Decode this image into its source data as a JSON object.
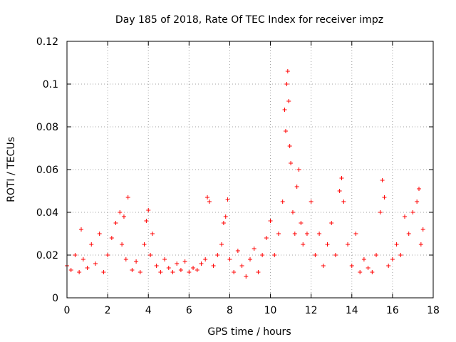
{
  "chart_data": {
    "type": "scatter",
    "title": "Day 185 of 2018, Rate Of TEC Index for receiver impz",
    "xlabel": "GPS time / hours",
    "ylabel": "ROTI / TECUs",
    "xlim": [
      0,
      18
    ],
    "ylim": [
      0,
      0.12
    ],
    "x_ticks": [
      0,
      2,
      4,
      6,
      8,
      10,
      12,
      14,
      16,
      18
    ],
    "x_tick_labels": [
      "0",
      "2",
      "4",
      "6",
      "8",
      "10",
      "12",
      "14",
      "16",
      "18"
    ],
    "y_ticks": [
      0,
      0.02,
      0.04,
      0.06,
      0.08,
      0.1,
      0.12
    ],
    "y_tick_labels": [
      "0",
      "0.02",
      "0.04",
      "0.06",
      "0.08",
      "0.1",
      "0.12"
    ],
    "grid": true,
    "marker": "+",
    "series": [
      {
        "name": "ROTI",
        "color": "#ff0000",
        "x": [
          0.0,
          0.2,
          0.4,
          0.6,
          0.7,
          0.8,
          1.0,
          1.2,
          1.4,
          1.6,
          1.8,
          2.0,
          2.2,
          2.4,
          2.6,
          2.7,
          2.8,
          2.9,
          3.0,
          3.2,
          3.4,
          3.6,
          3.8,
          3.9,
          4.0,
          4.1,
          4.2,
          4.4,
          4.6,
          4.8,
          5.0,
          5.2,
          5.4,
          5.6,
          5.8,
          6.0,
          6.2,
          6.4,
          6.6,
          6.8,
          6.9,
          7.0,
          7.2,
          7.4,
          7.6,
          7.7,
          7.8,
          7.9,
          8.0,
          8.2,
          8.4,
          8.6,
          8.8,
          9.0,
          9.2,
          9.4,
          9.6,
          9.8,
          10.0,
          10.2,
          10.4,
          10.6,
          10.7,
          10.75,
          10.8,
          10.85,
          10.9,
          10.95,
          11.0,
          11.1,
          11.2,
          11.3,
          11.4,
          11.5,
          11.6,
          11.8,
          12.0,
          12.2,
          12.4,
          12.6,
          12.8,
          13.0,
          13.2,
          13.4,
          13.5,
          13.6,
          13.8,
          14.0,
          14.2,
          14.4,
          14.6,
          14.8,
          15.0,
          15.2,
          15.4,
          15.5,
          15.6,
          15.8,
          16.0,
          16.2,
          16.4,
          16.6,
          16.8,
          17.0,
          17.2,
          17.3,
          17.4,
          17.5
        ],
        "y": [
          0.015,
          0.013,
          0.02,
          0.012,
          0.032,
          0.018,
          0.014,
          0.025,
          0.016,
          0.03,
          0.012,
          0.02,
          0.028,
          0.035,
          0.04,
          0.025,
          0.038,
          0.018,
          0.047,
          0.013,
          0.017,
          0.012,
          0.025,
          0.036,
          0.041,
          0.02,
          0.03,
          0.015,
          0.012,
          0.018,
          0.014,
          0.012,
          0.016,
          0.013,
          0.017,
          0.012,
          0.014,
          0.013,
          0.016,
          0.018,
          0.047,
          0.045,
          0.015,
          0.02,
          0.025,
          0.035,
          0.038,
          0.046,
          0.018,
          0.012,
          0.022,
          0.015,
          0.01,
          0.018,
          0.023,
          0.012,
          0.02,
          0.028,
          0.036,
          0.02,
          0.03,
          0.045,
          0.088,
          0.078,
          0.1,
          0.106,
          0.092,
          0.071,
          0.063,
          0.04,
          0.03,
          0.052,
          0.06,
          0.035,
          0.025,
          0.03,
          0.045,
          0.02,
          0.03,
          0.015,
          0.025,
          0.035,
          0.02,
          0.05,
          0.056,
          0.045,
          0.025,
          0.015,
          0.03,
          0.012,
          0.018,
          0.014,
          0.012,
          0.02,
          0.04,
          0.055,
          0.047,
          0.015,
          0.018,
          0.025,
          0.02,
          0.038,
          0.03,
          0.04,
          0.045,
          0.051,
          0.025,
          0.032
        ]
      }
    ]
  }
}
